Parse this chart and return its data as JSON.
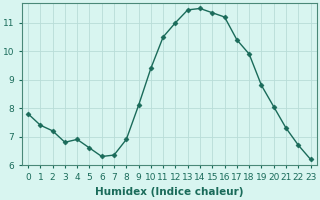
{
  "x": [
    0,
    1,
    2,
    3,
    4,
    5,
    6,
    7,
    8,
    9,
    10,
    11,
    12,
    13,
    14,
    15,
    16,
    17,
    18,
    19,
    20,
    21,
    22,
    23
  ],
  "y": [
    7.8,
    7.4,
    7.2,
    6.8,
    6.9,
    6.6,
    6.3,
    6.35,
    6.9,
    8.1,
    9.4,
    10.5,
    11.0,
    11.45,
    11.5,
    11.35,
    11.2,
    10.4,
    9.9,
    8.8,
    8.05,
    7.3,
    6.7,
    6.2
  ],
  "line_color": "#1a6b5a",
  "marker": "D",
  "marker_size": 2.5,
  "bg_color": "#d8f5f0",
  "grid_color": "#b8ddd8",
  "xlabel": "Humidex (Indice chaleur)",
  "xlim_min": -0.5,
  "xlim_max": 23.5,
  "ylim_min": 6.0,
  "ylim_max": 11.7,
  "yticks": [
    6,
    7,
    8,
    9,
    10,
    11
  ],
  "xticks": [
    0,
    1,
    2,
    3,
    4,
    5,
    6,
    7,
    8,
    9,
    10,
    11,
    12,
    13,
    14,
    15,
    16,
    17,
    18,
    19,
    20,
    21,
    22,
    23
  ],
  "tick_label_fontsize": 6.5,
  "xlabel_fontsize": 7.5,
  "line_width": 1.0
}
